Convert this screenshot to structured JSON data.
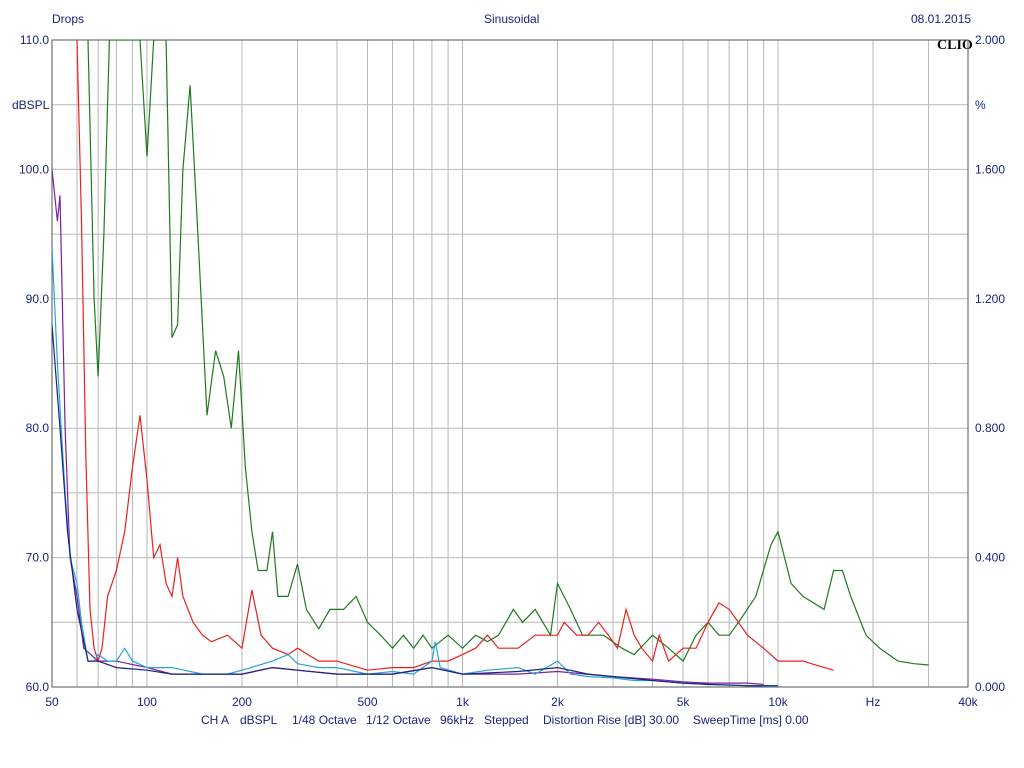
{
  "header": {
    "title_left": "Drops",
    "title_center": "Sinusoidal",
    "date": "08.01.2015",
    "brand": "CLIO"
  },
  "axes": {
    "left_unit": "dBSPL",
    "right_unit": "%",
    "x_unit": "Hz"
  },
  "footer": {
    "channel": "CH A",
    "unit": "dBSPL",
    "smoothing1": "1/48 Octave",
    "smoothing2": "1/12 Octave",
    "rate": "96kHz",
    "mode": "Stepped",
    "distortion_rise": "Distortion Rise [dB] 30.00",
    "sweep_time": "SweepTime [ms] 0.00"
  },
  "chart_data": {
    "type": "line",
    "x_scale": "log",
    "xlim": [
      50,
      40000
    ],
    "ylim_left": [
      60,
      110
    ],
    "ylim_right": [
      0,
      2
    ],
    "x_ticks": [
      {
        "v": 50,
        "label": "50"
      },
      {
        "v": 100,
        "label": "100"
      },
      {
        "v": 200,
        "label": "200"
      },
      {
        "v": 500,
        "label": "500"
      },
      {
        "v": 1000,
        "label": "1k"
      },
      {
        "v": 2000,
        "label": "2k"
      },
      {
        "v": 5000,
        "label": "5k"
      },
      {
        "v": 10000,
        "label": "10k"
      },
      {
        "v": 20000,
        "label": "Hz"
      },
      {
        "v": 40000,
        "label": "40k"
      }
    ],
    "y_ticks_left": [
      {
        "v": 110,
        "label": "110.0"
      },
      {
        "v": 100,
        "label": "100.0"
      },
      {
        "v": 90,
        "label": "90.0"
      },
      {
        "v": 80,
        "label": "80.0"
      },
      {
        "v": 70,
        "label": "70.0"
      },
      {
        "v": 60,
        "label": "60.0"
      }
    ],
    "y_ticks_right": [
      {
        "v": 2.0,
        "label": "2.000"
      },
      {
        "v": 1.6,
        "label": "1.600"
      },
      {
        "v": 1.2,
        "label": "1.200"
      },
      {
        "v": 0.8,
        "label": "0.800"
      },
      {
        "v": 0.4,
        "label": "0.400"
      },
      {
        "v": 0.0,
        "label": "0.000"
      }
    ],
    "grid": true,
    "series": [
      {
        "color": "#1f7a1f",
        "points": [
          [
            65,
            110
          ],
          [
            68,
            90
          ],
          [
            70,
            84
          ],
          [
            73,
            95
          ],
          [
            76,
            110
          ],
          [
            85,
            110
          ],
          [
            95,
            110
          ],
          [
            100,
            101
          ],
          [
            105,
            110
          ],
          [
            115,
            110
          ],
          [
            120,
            87
          ],
          [
            125,
            88
          ],
          [
            130,
            100
          ],
          [
            137,
            106.5
          ],
          [
            145,
            95
          ],
          [
            155,
            81
          ],
          [
            165,
            86
          ],
          [
            175,
            84
          ],
          [
            185,
            80
          ],
          [
            195,
            86
          ],
          [
            205,
            77
          ],
          [
            215,
            72
          ],
          [
            225,
            69
          ],
          [
            240,
            69
          ],
          [
            250,
            72
          ],
          [
            260,
            67
          ],
          [
            280,
            67
          ],
          [
            300,
            69.5
          ],
          [
            320,
            66
          ],
          [
            350,
            64.5
          ],
          [
            380,
            66
          ],
          [
            420,
            66
          ],
          [
            460,
            67
          ],
          [
            500,
            65
          ],
          [
            550,
            64
          ],
          [
            600,
            63
          ],
          [
            650,
            64
          ],
          [
            700,
            63
          ],
          [
            750,
            64
          ],
          [
            800,
            63
          ],
          [
            900,
            64
          ],
          [
            1000,
            63
          ],
          [
            1100,
            64
          ],
          [
            1200,
            63.5
          ],
          [
            1300,
            64
          ],
          [
            1450,
            66
          ],
          [
            1550,
            65
          ],
          [
            1700,
            66
          ],
          [
            1900,
            64
          ],
          [
            2000,
            68
          ],
          [
            2200,
            66
          ],
          [
            2400,
            64
          ],
          [
            2600,
            64
          ],
          [
            2800,
            64
          ],
          [
            3200,
            63
          ],
          [
            3500,
            62.5
          ],
          [
            4000,
            64
          ],
          [
            4500,
            63
          ],
          [
            5000,
            62
          ],
          [
            5500,
            64
          ],
          [
            6000,
            65
          ],
          [
            6500,
            64
          ],
          [
            7000,
            64
          ],
          [
            7500,
            65
          ],
          [
            8500,
            67
          ],
          [
            9500,
            71
          ],
          [
            10000,
            72
          ],
          [
            11000,
            68
          ],
          [
            12000,
            67
          ],
          [
            14000,
            66
          ],
          [
            15000,
            69
          ],
          [
            16000,
            69
          ],
          [
            17000,
            67
          ],
          [
            19000,
            64
          ],
          [
            21000,
            63
          ],
          [
            24000,
            62
          ],
          [
            27000,
            61.8
          ],
          [
            30000,
            61.7
          ]
        ]
      },
      {
        "color": "#e82020",
        "points": [
          [
            60,
            110
          ],
          [
            62,
            96
          ],
          [
            64,
            78
          ],
          [
            66,
            66
          ],
          [
            68,
            63
          ],
          [
            70,
            62
          ],
          [
            72,
            63
          ],
          [
            75,
            67
          ],
          [
            80,
            69
          ],
          [
            85,
            72
          ],
          [
            90,
            77
          ],
          [
            95,
            81
          ],
          [
            100,
            76
          ],
          [
            105,
            70
          ],
          [
            110,
            71
          ],
          [
            115,
            68
          ],
          [
            120,
            67
          ],
          [
            125,
            70
          ],
          [
            130,
            67
          ],
          [
            140,
            65
          ],
          [
            150,
            64
          ],
          [
            160,
            63.5
          ],
          [
            180,
            64
          ],
          [
            200,
            63
          ],
          [
            215,
            67.5
          ],
          [
            230,
            64
          ],
          [
            250,
            63
          ],
          [
            280,
            62.5
          ],
          [
            300,
            63
          ],
          [
            350,
            62
          ],
          [
            400,
            62
          ],
          [
            500,
            61.3
          ],
          [
            600,
            61.5
          ],
          [
            700,
            61.5
          ],
          [
            800,
            62
          ],
          [
            900,
            62
          ],
          [
            1000,
            62.5
          ],
          [
            1100,
            63
          ],
          [
            1200,
            64
          ],
          [
            1300,
            63
          ],
          [
            1500,
            63
          ],
          [
            1700,
            64
          ],
          [
            1800,
            64
          ],
          [
            2000,
            64
          ],
          [
            2100,
            65
          ],
          [
            2300,
            64
          ],
          [
            2500,
            64
          ],
          [
            2700,
            65
          ],
          [
            2900,
            64
          ],
          [
            3100,
            63
          ],
          [
            3300,
            66
          ],
          [
            3500,
            64
          ],
          [
            3700,
            63
          ],
          [
            4000,
            62
          ],
          [
            4200,
            64
          ],
          [
            4500,
            62
          ],
          [
            5000,
            63
          ],
          [
            5500,
            63
          ],
          [
            6000,
            65
          ],
          [
            6500,
            66.5
          ],
          [
            7000,
            66
          ],
          [
            8000,
            64
          ],
          [
            9000,
            63
          ],
          [
            10000,
            62
          ],
          [
            12000,
            62
          ],
          [
            14000,
            61.5
          ],
          [
            15000,
            61.3
          ]
        ]
      },
      {
        "color": "#7b1fa2",
        "points": [
          [
            50,
            100
          ],
          [
            52,
            96
          ],
          [
            53,
            98
          ],
          [
            55,
            80
          ],
          [
            57,
            70
          ],
          [
            60,
            67
          ],
          [
            63,
            63
          ],
          [
            70,
            62
          ],
          [
            80,
            62
          ],
          [
            100,
            61.5
          ],
          [
            120,
            61
          ],
          [
            150,
            61
          ],
          [
            200,
            61
          ],
          [
            250,
            61.5
          ],
          [
            300,
            61.3
          ],
          [
            400,
            61
          ],
          [
            600,
            61
          ],
          [
            800,
            61.5
          ],
          [
            1000,
            61
          ],
          [
            1500,
            61
          ],
          [
            2000,
            61.2
          ],
          [
            3000,
            60.8
          ],
          [
            4000,
            60.6
          ],
          [
            5000,
            60.4
          ],
          [
            6000,
            60.3
          ],
          [
            7000,
            60.3
          ],
          [
            8000,
            60.3
          ],
          [
            9000,
            60.2
          ]
        ]
      },
      {
        "color": "#29a3d6",
        "points": [
          [
            50,
            94
          ],
          [
            52,
            85
          ],
          [
            55,
            75
          ],
          [
            57,
            70
          ],
          [
            60,
            68
          ],
          [
            62,
            65
          ],
          [
            65,
            62
          ],
          [
            68,
            62
          ],
          [
            70,
            62.5
          ],
          [
            75,
            62
          ],
          [
            80,
            62
          ],
          [
            85,
            63
          ],
          [
            90,
            62
          ],
          [
            100,
            61.5
          ],
          [
            120,
            61.5
          ],
          [
            150,
            61
          ],
          [
            180,
            61
          ],
          [
            200,
            61.3
          ],
          [
            250,
            62
          ],
          [
            280,
            62.5
          ],
          [
            300,
            61.8
          ],
          [
            350,
            61.5
          ],
          [
            400,
            61.5
          ],
          [
            500,
            61
          ],
          [
            600,
            61.2
          ],
          [
            700,
            61
          ],
          [
            800,
            62
          ],
          [
            820,
            63.5
          ],
          [
            850,
            61.5
          ],
          [
            1000,
            61
          ],
          [
            1200,
            61.3
          ],
          [
            1500,
            61.5
          ],
          [
            1700,
            61
          ],
          [
            2000,
            62
          ],
          [
            2200,
            61
          ],
          [
            2500,
            60.8
          ],
          [
            3000,
            60.7
          ],
          [
            3500,
            60.5
          ],
          [
            4000,
            60.5
          ],
          [
            5000,
            60.3
          ],
          [
            6000,
            60.2
          ],
          [
            8000,
            60.1
          ],
          [
            10000,
            60.05
          ]
        ]
      },
      {
        "color": "#1a237e",
        "points": [
          [
            50,
            88
          ],
          [
            53,
            80
          ],
          [
            56,
            72
          ],
          [
            60,
            66
          ],
          [
            65,
            62
          ],
          [
            70,
            62
          ],
          [
            80,
            61.5
          ],
          [
            100,
            61.3
          ],
          [
            120,
            61
          ],
          [
            150,
            61
          ],
          [
            200,
            61
          ],
          [
            250,
            61.5
          ],
          [
            300,
            61.3
          ],
          [
            400,
            61
          ],
          [
            500,
            61
          ],
          [
            600,
            61
          ],
          [
            800,
            61.5
          ],
          [
            1000,
            61
          ],
          [
            1500,
            61.2
          ],
          [
            2000,
            61.5
          ],
          [
            2500,
            61
          ],
          [
            3000,
            60.8
          ],
          [
            4000,
            60.5
          ],
          [
            5000,
            60.3
          ],
          [
            6000,
            60.2
          ],
          [
            8000,
            60.1
          ],
          [
            10000,
            60.1
          ]
        ]
      }
    ]
  }
}
